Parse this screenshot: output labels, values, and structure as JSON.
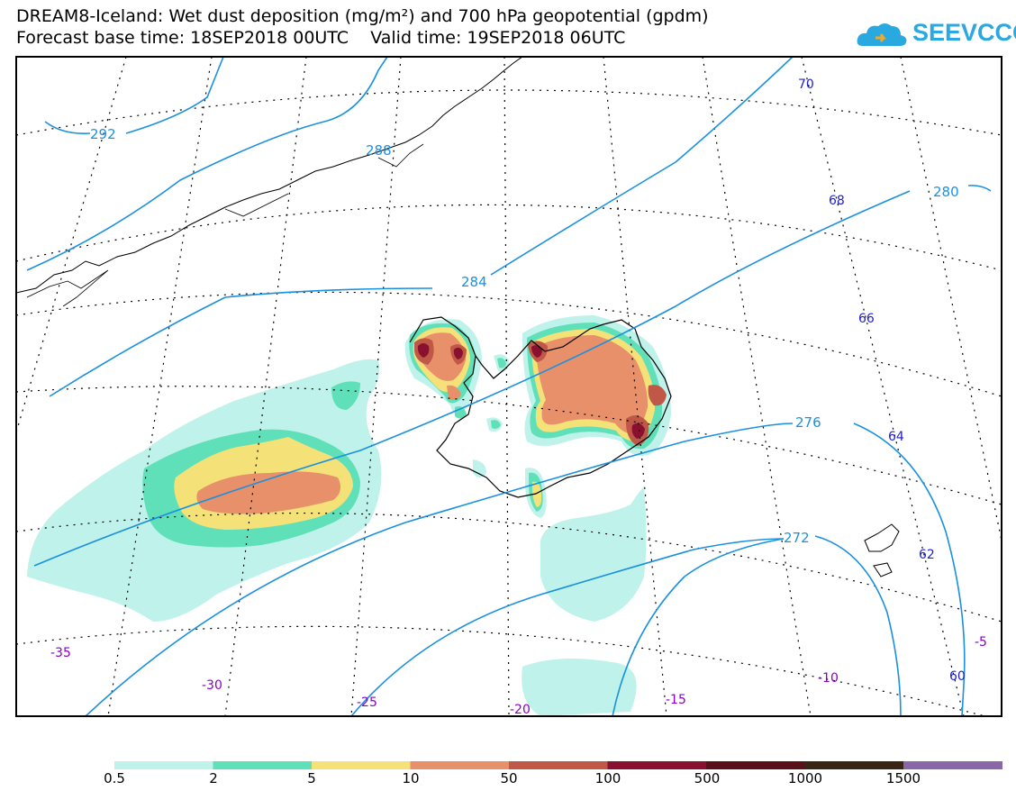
{
  "title": {
    "line1": "DREAM8-Iceland: Wet dust deposition (mg/m²) and 700 hPa geopotential (gpdm)",
    "line2": "Forecast base time: 18SEP2018 00UTC    Valid time: 19SEP2018 06UTC"
  },
  "logo": {
    "text": "SEEVCCC",
    "icon": "cloud-icon",
    "color": "#2aa8e0"
  },
  "contours": {
    "color": "#1a90e0",
    "labels": [
      "292",
      "288",
      "284",
      "280",
      "276",
      "272"
    ]
  },
  "latitude_labels": {
    "color": "#2020d0",
    "labels": [
      "70",
      "68",
      "66",
      "64",
      "62",
      "60"
    ]
  },
  "longitude_labels": {
    "color": "#8a00c8",
    "labels": [
      "-35",
      "-30",
      "-25",
      "-20",
      "-15",
      "-10",
      "-5"
    ]
  },
  "legend": {
    "labels": [
      "0.5",
      "2",
      "5",
      "10",
      "50",
      "100",
      "500",
      "1000",
      "1500"
    ],
    "colors": [
      "#bff2ea",
      "#5fe0b8",
      "#f4e278",
      "#e8906a",
      "#c05848",
      "#8a1030",
      "#5a1018",
      "#3a2414",
      "#8a68a8",
      "#a8a8a8"
    ]
  }
}
